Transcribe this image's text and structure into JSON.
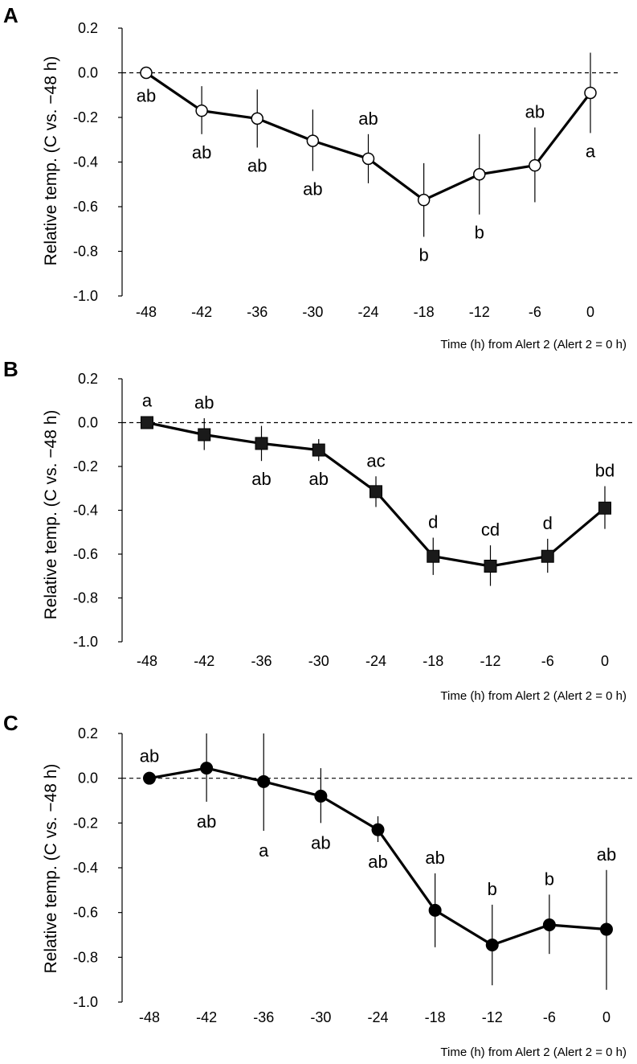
{
  "chart_data": [
    {
      "type": "line",
      "panel": "A",
      "marker": "circle-open",
      "xlabel": "Time (h) from Alert 2 (Alert 2 = 0 h)",
      "ylabel": "Relative temp. (C vs. −48 h)",
      "categories": [
        "-48",
        "-42",
        "-36",
        "-30",
        "-24",
        "-18",
        "-12",
        "-6",
        "0"
      ],
      "y_ticks": [
        "0.2",
        "0.0",
        "-0.2",
        "-0.4",
        "-0.6",
        "-0.8",
        "-1.0"
      ],
      "ylim": [
        -1.0,
        0.2
      ],
      "reference_line": 0,
      "values": [
        0.0,
        -0.17,
        -0.205,
        -0.305,
        -0.385,
        -0.57,
        -0.455,
        -0.415,
        -0.09
      ],
      "error_low": [
        0.0,
        -0.275,
        -0.335,
        -0.44,
        -0.495,
        -0.735,
        -0.635,
        -0.58,
        -0.27
      ],
      "error_high": [
        0.0,
        -0.06,
        -0.075,
        -0.165,
        -0.275,
        -0.405,
        -0.275,
        -0.245,
        0.09
      ],
      "letters": [
        "ab",
        "ab",
        "ab",
        "ab",
        "ab",
        "b",
        "b",
        "ab",
        "a"
      ],
      "letter_positions": [
        "below",
        "below",
        "below",
        "below",
        "above",
        "below",
        "below",
        "above",
        "below"
      ]
    },
    {
      "type": "line",
      "panel": "B",
      "marker": "square-filled",
      "xlabel": "Time (h) from Alert 2 (Alert 2 = 0 h)",
      "ylabel": "Relative temp. (C vs. −48 h)",
      "categories": [
        "-48",
        "-42",
        "-36",
        "-30",
        "-24",
        "-18",
        "-12",
        "-6",
        "0"
      ],
      "y_ticks": [
        "0.2",
        "0.0",
        "-0.2",
        "-0.4",
        "-0.6",
        "-0.8",
        "-1.0"
      ],
      "ylim": [
        -1.0,
        0.2
      ],
      "reference_line": 0,
      "values": [
        0.0,
        -0.055,
        -0.095,
        -0.125,
        -0.315,
        -0.61,
        -0.655,
        -0.61,
        -0.39
      ],
      "error_low": [
        0.0,
        -0.125,
        -0.175,
        -0.175,
        -0.385,
        -0.695,
        -0.745,
        -0.685,
        -0.485
      ],
      "error_high": [
        0.0,
        0.02,
        -0.015,
        -0.075,
        -0.245,
        -0.525,
        -0.56,
        -0.53,
        -0.29
      ],
      "letters": [
        "a",
        "ab",
        "ab",
        "ab",
        "ac",
        "d",
        "cd",
        "d",
        "bd"
      ],
      "letter_positions": [
        "above",
        "above",
        "below",
        "below",
        "above",
        "above",
        "above",
        "above",
        "above"
      ]
    },
    {
      "type": "line",
      "panel": "C",
      "marker": "circle-filled",
      "xlabel": "Time (h) from Alert 2 (Alert 2 = 0 h)",
      "ylabel": "Relative temp. (C vs. −48 h)",
      "categories": [
        "-48",
        "-42",
        "-36",
        "-30",
        "-24",
        "-18",
        "-12",
        "-6",
        "0"
      ],
      "y_ticks": [
        "0.2",
        "0.0",
        "-0.2",
        "-0.4",
        "-0.6",
        "-0.8",
        "-1.0"
      ],
      "ylim": [
        -1.0,
        0.2
      ],
      "reference_line": 0,
      "values": [
        0.0,
        0.045,
        -0.015,
        -0.08,
        -0.23,
        -0.59,
        -0.745,
        -0.655,
        -0.675
      ],
      "error_low": [
        0.0,
        -0.105,
        -0.235,
        -0.2,
        -0.285,
        -0.755,
        -0.925,
        -0.785,
        -0.945
      ],
      "error_high": [
        0.0,
        0.2,
        0.2,
        0.045,
        -0.17,
        -0.425,
        -0.565,
        -0.52,
        -0.41
      ],
      "letters": [
        "ab",
        "ab",
        "a",
        "ab",
        "ab",
        "ab",
        "b",
        "b",
        "ab"
      ],
      "letter_positions": [
        "above",
        "below",
        "below",
        "below",
        "below",
        "above",
        "above",
        "above",
        "above"
      ]
    }
  ]
}
